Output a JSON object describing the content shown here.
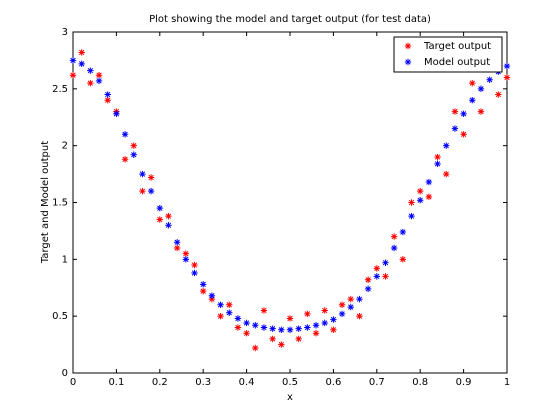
{
  "chart_data": {
    "type": "scatter",
    "title": "Plot showing the model and target output (for test data)",
    "xlabel": "x",
    "ylabel": "Target and Model output",
    "x": [
      0,
      0.02,
      0.04,
      0.06,
      0.08,
      0.1,
      0.12,
      0.14,
      0.16,
      0.18,
      0.2,
      0.22,
      0.24,
      0.26,
      0.28,
      0.3,
      0.32,
      0.34,
      0.36,
      0.38,
      0.4,
      0.42,
      0.44,
      0.46,
      0.48,
      0.5,
      0.52,
      0.54,
      0.56,
      0.58,
      0.6,
      0.62,
      0.64,
      0.66,
      0.68,
      0.7,
      0.72,
      0.74,
      0.76,
      0.78,
      0.8,
      0.82,
      0.84,
      0.86,
      0.88,
      0.9,
      0.92,
      0.94,
      0.96,
      0.98,
      1
    ],
    "series": [
      {
        "name": "Target output",
        "color": "#ff0000",
        "values": [
          2.62,
          2.82,
          2.55,
          2.62,
          2.4,
          2.3,
          1.88,
          2.0,
          1.6,
          1.72,
          1.35,
          1.38,
          1.1,
          1.05,
          0.95,
          0.72,
          0.65,
          0.5,
          0.6,
          0.4,
          0.35,
          0.22,
          0.55,
          0.3,
          0.25,
          0.48,
          0.3,
          0.52,
          0.35,
          0.55,
          0.38,
          0.6,
          0.65,
          0.5,
          0.82,
          0.92,
          0.85,
          1.2,
          1.0,
          1.5,
          1.6,
          1.55,
          1.9,
          1.75,
          2.3,
          2.1,
          2.55,
          2.3,
          2.7,
          2.45,
          2.6
        ]
      },
      {
        "name": "Model output",
        "color": "#0000ff",
        "values": [
          2.75,
          2.72,
          2.66,
          2.57,
          2.45,
          2.28,
          2.1,
          1.92,
          1.75,
          1.6,
          1.45,
          1.3,
          1.15,
          1.0,
          0.88,
          0.78,
          0.68,
          0.6,
          0.53,
          0.48,
          0.44,
          0.42,
          0.4,
          0.39,
          0.38,
          0.38,
          0.39,
          0.4,
          0.42,
          0.44,
          0.47,
          0.52,
          0.58,
          0.65,
          0.74,
          0.85,
          0.97,
          1.1,
          1.24,
          1.38,
          1.52,
          1.68,
          1.84,
          2.0,
          2.15,
          2.28,
          2.4,
          2.5,
          2.58,
          2.65,
          2.7
        ]
      }
    ],
    "xlim": [
      0,
      1
    ],
    "xticks": [
      0,
      0.1,
      0.2,
      0.3,
      0.4,
      0.5,
      0.6,
      0.7,
      0.8,
      0.9,
      1
    ],
    "ylim": [
      0,
      3
    ],
    "yticks": [
      0,
      0.5,
      1,
      1.5,
      2,
      2.5,
      3
    ],
    "legend": "northeast"
  }
}
